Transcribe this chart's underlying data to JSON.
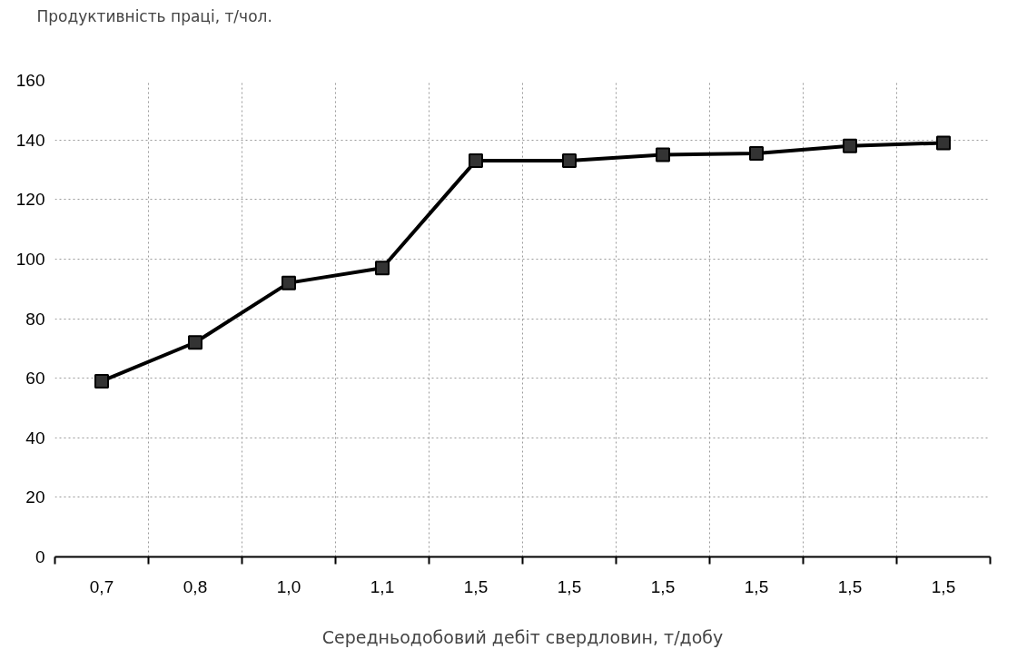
{
  "chart_data": {
    "type": "line",
    "ylabel": "Продуктивність праці, т/чол.",
    "xlabel": "Середньодобовий дебіт свердловин, т/добу",
    "categories": [
      "0,7",
      "0,8",
      "1,0",
      "1,1",
      "1,5",
      "1,5",
      "1,5",
      "1,5",
      "1,5",
      "1,5"
    ],
    "series": [
      {
        "color": "#000000",
        "values": [
          59,
          72,
          92,
          97,
          133,
          133,
          135,
          135.5,
          138,
          139
        ]
      }
    ],
    "ylim": [
      0,
      160
    ],
    "yticks": [
      0,
      20,
      40,
      60,
      80,
      100,
      120,
      140,
      160
    ],
    "grid": true,
    "marker": "square",
    "line_style": "solid"
  }
}
